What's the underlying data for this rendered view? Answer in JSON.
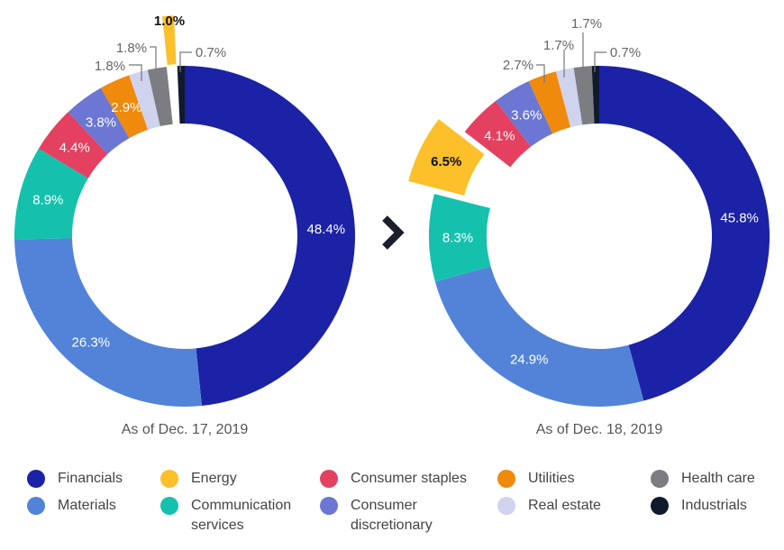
{
  "chart_data": [
    {
      "type": "pie",
      "subtype": "donut",
      "caption": "As of Dec. 17, 2019",
      "slices": [
        {
          "category": "Financials",
          "value": 48.4,
          "label": "48.4%"
        },
        {
          "category": "Materials",
          "value": 26.3,
          "label": "26.3%"
        },
        {
          "category": "Communication services",
          "value": 8.9,
          "label": "8.9%"
        },
        {
          "category": "Consumer staples",
          "value": 4.4,
          "label": "4.4%"
        },
        {
          "category": "Consumer discretionary",
          "value": 3.8,
          "label": "3.8%"
        },
        {
          "category": "Utilities",
          "value": 2.9,
          "label": "2.9%"
        },
        {
          "category": "Real estate",
          "value": 1.8,
          "label": "1.8%"
        },
        {
          "category": "Health care",
          "value": 1.8,
          "label": "1.8%"
        },
        {
          "category": "Energy",
          "value": 1.0,
          "label": "1.0%",
          "exploded": true
        },
        {
          "category": "Industrials",
          "value": 0.7,
          "label": "0.7%"
        }
      ]
    },
    {
      "type": "pie",
      "subtype": "donut",
      "caption": "As of Dec. 18, 2019",
      "slices": [
        {
          "category": "Financials",
          "value": 45.8,
          "label": "45.8%"
        },
        {
          "category": "Materials",
          "value": 24.9,
          "label": "24.9%"
        },
        {
          "category": "Communication services",
          "value": 8.3,
          "label": "8.3%"
        },
        {
          "category": "Energy",
          "value": 6.5,
          "label": "6.5%",
          "exploded": true
        },
        {
          "category": "Consumer staples",
          "value": 4.1,
          "label": "4.1%"
        },
        {
          "category": "Consumer discretionary",
          "value": 3.6,
          "label": "3.6%"
        },
        {
          "category": "Utilities",
          "value": 2.7,
          "label": "2.7%"
        },
        {
          "category": "Real estate",
          "value": 1.7,
          "label": "1.7%"
        },
        {
          "category": "Health care",
          "value": 1.7,
          "label": "1.7%"
        },
        {
          "category": "Industrials",
          "value": 0.7,
          "label": "0.7%"
        }
      ]
    }
  ],
  "colors": {
    "Financials": "#1b22a6",
    "Materials": "#5283d9",
    "Communication services": "#15c1ad",
    "Consumer staples": "#e4405f",
    "Consumer discretionary": "#6b77d3",
    "Utilities": "#ef8a0d",
    "Real estate": "#cfd3ee",
    "Health care": "#7c7d81",
    "Energy": "#fbc02a",
    "Industrials": "#101a2b"
  },
  "legend": [
    {
      "category": "Financials",
      "label": "Financials"
    },
    {
      "category": "Energy",
      "label": "Energy"
    },
    {
      "category": "Consumer staples",
      "label": "Consumer staples"
    },
    {
      "category": "Utilities",
      "label": "Utilities"
    },
    {
      "category": "Health care",
      "label": "Health care"
    },
    {
      "category": "Materials",
      "label": "Materials"
    },
    {
      "category": "Communication services",
      "label": "Communication services"
    },
    {
      "category": "Consumer discretionary",
      "label": "Consumer discretionary"
    },
    {
      "category": "Real estate",
      "label": "Real estate"
    },
    {
      "category": "Industrials",
      "label": "Industrials"
    }
  ],
  "legend_placement": "bottom",
  "arrow_icon": "chevron-right-icon"
}
